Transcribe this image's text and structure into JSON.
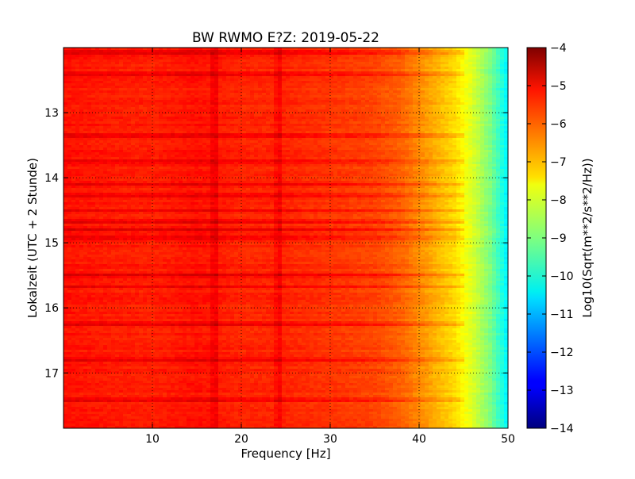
{
  "chart_data": {
    "type": "heatmap",
    "title": "BW RWMO E?Z: 2019-05-22",
    "xlabel": "Frequency [Hz]",
    "ylabel": "Lokalzeit (UTC + 2 Stunde)",
    "xlim": [
      0,
      50
    ],
    "ylim": [
      17.85,
      12.0
    ],
    "x_ticks": [
      10,
      20,
      30,
      40,
      50
    ],
    "x_tick_labels": [
      "10",
      "20",
      "30",
      "40",
      "50"
    ],
    "y_ticks": [
      13,
      14,
      15,
      16,
      17
    ],
    "y_tick_labels": [
      "13",
      "14",
      "15",
      "16",
      "17"
    ],
    "y_inverted": true,
    "grid": true,
    "colormap": "jet",
    "colorbar": {
      "label": "Log10(Sqrt(m**2/s**2/Hz))",
      "min": -14,
      "max": -4,
      "ticks": [
        -4,
        -5,
        -6,
        -7,
        -8,
        -9,
        -10,
        -11,
        -12,
        -13,
        -14
      ],
      "tick_labels": [
        "−4",
        "−5",
        "−6",
        "−7",
        "−8",
        "−9",
        "−10",
        "−11",
        "−12",
        "−13",
        "−14"
      ]
    },
    "spectrum_profile": {
      "freq_hz": [
        0,
        5,
        10,
        15,
        20,
        25,
        30,
        35,
        38,
        40,
        42,
        44,
        46,
        48,
        50
      ],
      "log_amplitude": [
        -5.4,
        -5.5,
        -5.55,
        -5.4,
        -5.6,
        -5.6,
        -5.75,
        -5.9,
        -6.2,
        -6.6,
        -7.0,
        -7.4,
        -8.1,
        -9.0,
        -10.4
      ]
    },
    "spectral_lines_hz": [
      17.0,
      24.2
    ],
    "time_bands": [
      12.08,
      12.4,
      13.35,
      13.75,
      14.1,
      14.27,
      14.5,
      14.68,
      14.8,
      14.93,
      15.5,
      15.68,
      16.25,
      16.8,
      17.42
    ]
  }
}
